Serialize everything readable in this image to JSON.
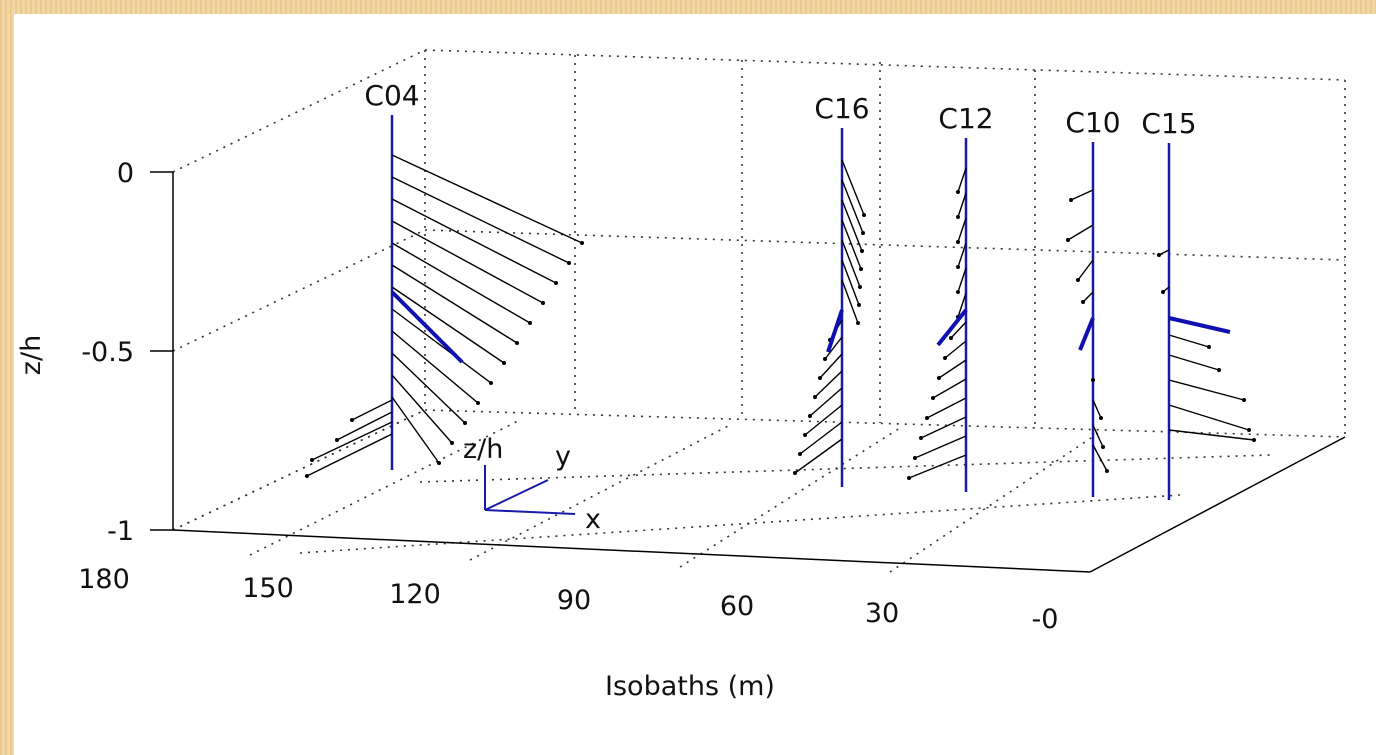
{
  "chart_data": {
    "type": "3d-quiver",
    "xlabel": "Isobaths (m)",
    "ylabel": "z/h",
    "x_ticks": [
      "180",
      "150",
      "120",
      "90",
      "60",
      "30",
      "-0"
    ],
    "z_ticks": [
      "0",
      "-0.5",
      "-1"
    ],
    "xlim": [
      0,
      180
    ],
    "zlim": [
      -1,
      0
    ],
    "grid": true,
    "orientation_legend": {
      "z": "z/h",
      "y": "y",
      "x": "x"
    },
    "stations": [
      {
        "name": "C04",
        "isobath": 131
      },
      {
        "name": "C16",
        "isobath": 51
      },
      {
        "name": "C12",
        "isobath": 38
      },
      {
        "name": "C10",
        "isobath": 17
      },
      {
        "name": "C15",
        "isobath": 7
      }
    ]
  },
  "colors": {
    "frame": "#f0d49e",
    "axis": "#000000",
    "station_line": "#1a1aa8",
    "vector": "#000000",
    "mean_vector": "#1010b0"
  }
}
